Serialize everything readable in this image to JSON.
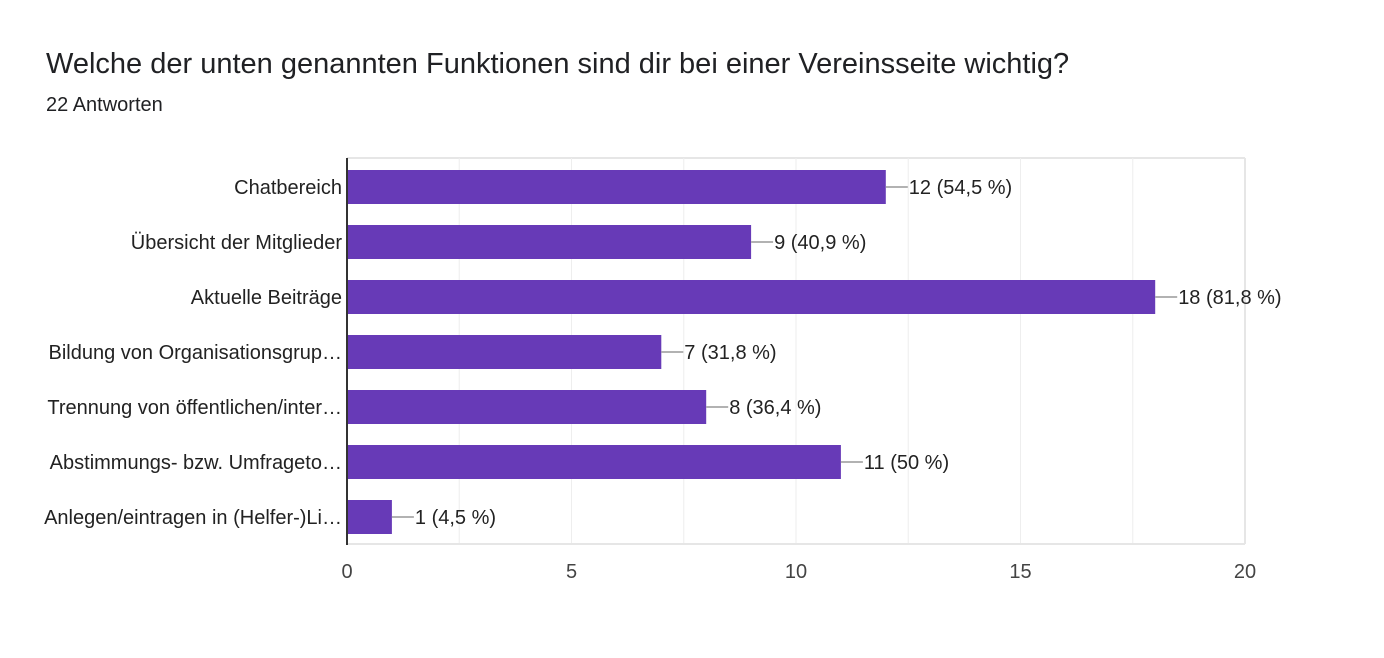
{
  "title": "Welche der unten genannten Funktionen  sind dir bei einer Vereinsseite wichtig?",
  "subtitle": "22 Antworten",
  "colors": {
    "bar": "#673ab7",
    "grid": "#e6e6e6",
    "axis": "#333333",
    "leader": "#999999"
  },
  "chart_data": {
    "type": "bar",
    "orientation": "horizontal",
    "categories": [
      "Chatbereich",
      "Übersicht der Mitglieder",
      "Aktuelle Beiträge",
      "Bildung von Organisationsgrup…",
      "Trennung von öffentlichen/inter…",
      "Abstimmungs- bzw. Umfrageto…",
      "Anlegen/eintragen in (Helfer-)Li…"
    ],
    "values": [
      12,
      9,
      18,
      7,
      8,
      11,
      1
    ],
    "value_labels": [
      "12 (54,5 %)",
      "9 (40,9 %)",
      "18 (81,8 %)",
      "7 (31,8 %)",
      "8 (36,4 %)",
      "11 (50 %)",
      "1 (4,5 %)"
    ],
    "xlim": [
      0,
      20
    ],
    "xticks": [
      0,
      5,
      10,
      15,
      20
    ],
    "xtick_labels": [
      "0",
      "5",
      "10",
      "15",
      "20"
    ],
    "grid": true,
    "legend": "none"
  }
}
